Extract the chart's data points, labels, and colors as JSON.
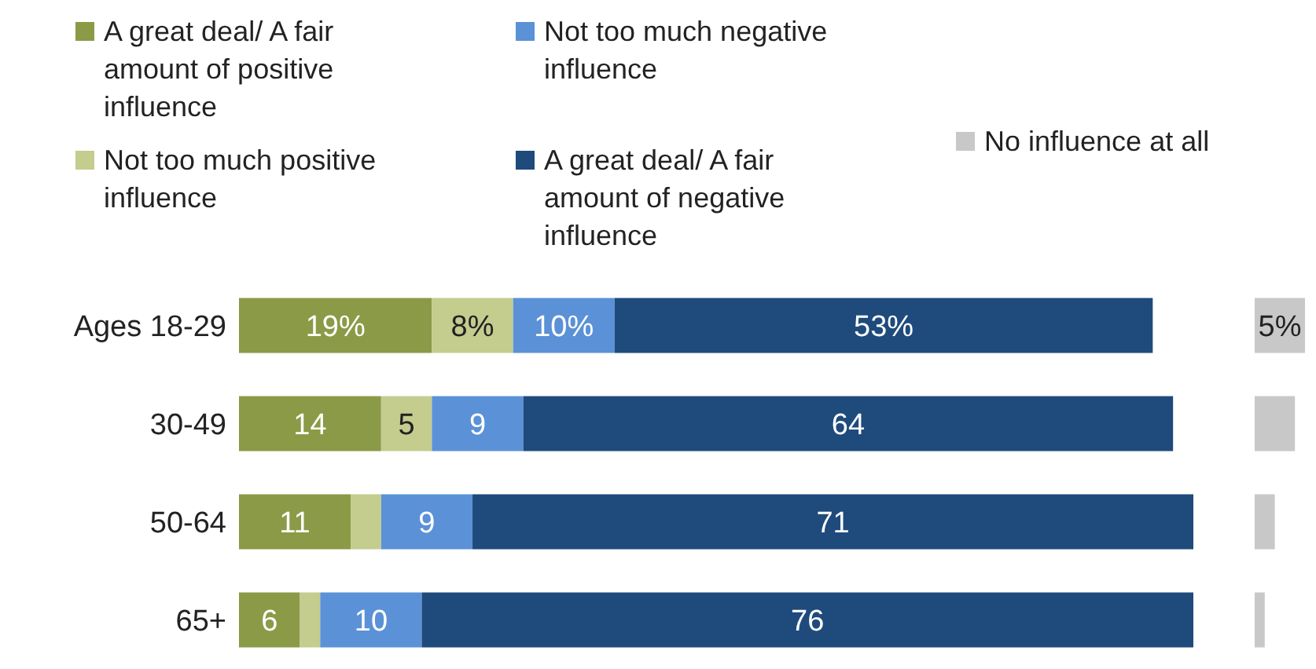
{
  "chart_data": [
    {
      "type": "bar",
      "orientation": "horizontal",
      "stacked": true,
      "legend": "top",
      "tick_labels": "y",
      "categories": [
        "Ages 18-29",
        "30-49",
        "50-64",
        "65+"
      ],
      "series": [
        {
          "name": "A great deal/ A fair amount of positive influence",
          "color": "#8b9a46",
          "values": [
            19,
            14,
            11,
            6
          ],
          "value_labels": [
            "19%",
            "14",
            "11",
            "6"
          ]
        },
        {
          "name": "Not too much positive influence",
          "color": "#c4cc8e",
          "values": [
            8,
            5,
            3,
            2
          ],
          "value_labels": [
            "8%",
            "5",
            null,
            null
          ]
        },
        {
          "name": "Not too much negative influence",
          "color": "#5b91d6",
          "values": [
            10,
            9,
            9,
            10
          ],
          "value_labels": [
            "10%",
            "9",
            "9",
            "10"
          ]
        },
        {
          "name": "A great deal/ A fair amount of negative influence",
          "color": "#1f4a7c",
          "values": [
            53,
            64,
            71,
            76
          ],
          "value_labels": [
            "53%",
            "64",
            "71",
            "76"
          ]
        }
      ]
    },
    {
      "type": "bar",
      "orientation": "horizontal",
      "legend": "top",
      "tick_labels": false,
      "categories": [
        null,
        null,
        null,
        null
      ],
      "series": [
        {
          "name": "No influence at all",
          "color": "#c8c8c8",
          "values": [
            5,
            4,
            2,
            1
          ],
          "value_labels": [
            "5%",
            null,
            null,
            null
          ]
        }
      ]
    }
  ]
}
